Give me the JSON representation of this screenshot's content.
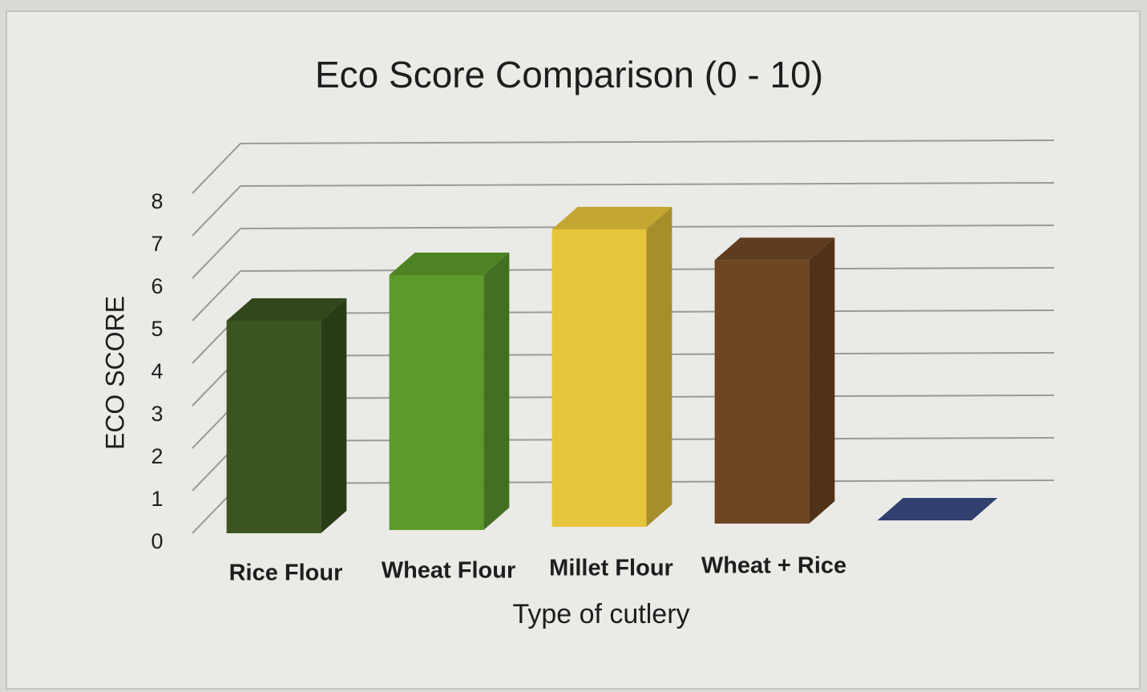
{
  "chart_data": {
    "type": "bar3d",
    "title": "Eco Score Comparison (0 - 10)",
    "x_label": "Type of cutlery",
    "y_label": "ECO SCORE",
    "categories": [
      "Rice Flour",
      "Wheat Flour",
      "Millet Flour",
      "Wheat + Rice",
      null
    ],
    "values": [
      5,
      6,
      7,
      6.2,
      0
    ],
    "colors": [
      "#3b5420",
      "#5c9a2c",
      "#e6c53c",
      "#6e4622",
      "#3a4b82"
    ],
    "ylim": [
      0,
      8
    ],
    "yticks": [
      0,
      1,
      2,
      3,
      4,
      5,
      6,
      7,
      8
    ],
    "grid": true
  }
}
